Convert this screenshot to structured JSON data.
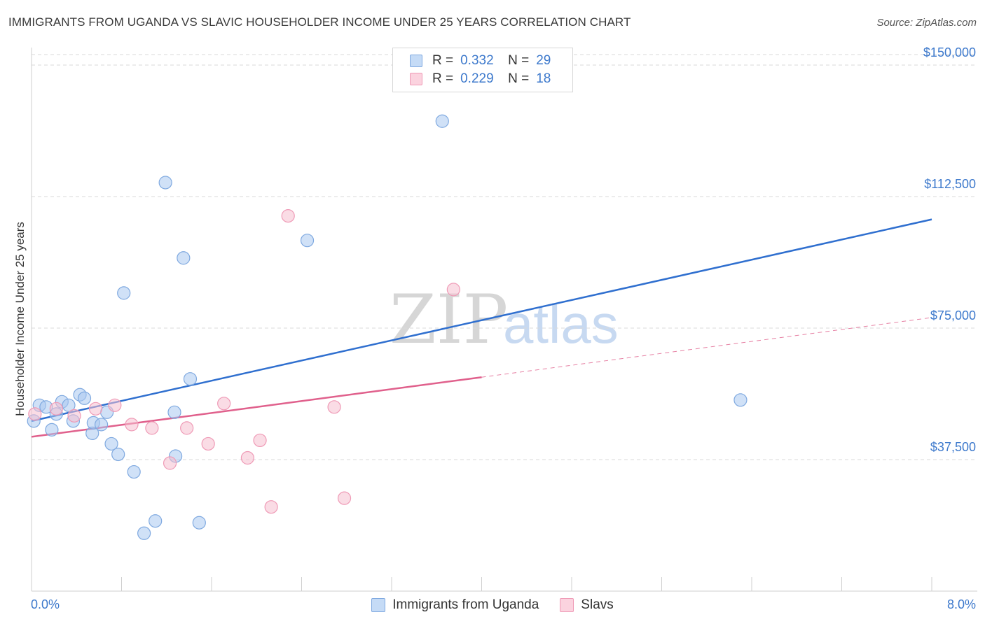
{
  "header": {
    "title": "IMMIGRANTS FROM UGANDA VS SLAVIC HOUSEHOLDER INCOME UNDER 25 YEARS CORRELATION CHART",
    "source": "Source: ZipAtlas.com"
  },
  "watermark": {
    "zip": "ZIP",
    "atlas": "atlas"
  },
  "legend": {
    "rows": [
      {
        "r_label": "R =",
        "r_value": "0.332",
        "n_label": "N =",
        "n_value": "29",
        "color": "#a9c8f0"
      },
      {
        "r_label": "R =",
        "r_value": "0.229",
        "n_label": "N =",
        "n_value": "18",
        "color": "#f6bfd0"
      }
    ]
  },
  "bottom_legend": {
    "items": [
      {
        "label": "Immigrants from Uganda",
        "color": "#a9c8f0"
      },
      {
        "label": "Slavs",
        "color": "#f6bfd0"
      }
    ]
  },
  "colors": {
    "blue_fill": "#a9c8f0",
    "blue_line": "#2f6fcf",
    "pink_fill": "#f6bfd0",
    "pink_line": "#e0608c",
    "tick_text": "#3d79cc",
    "grid": "#d9d9d9"
  },
  "chart_data": {
    "type": "scatter",
    "title": "IMMIGRANTS FROM UGANDA VS SLAVIC HOUSEHOLDER INCOME UNDER 25 YEARS CORRELATION CHART",
    "xlabel": "",
    "ylabel": "Householder Income Under 25 years",
    "xlim": [
      0,
      8.0
    ],
    "ylim": [
      0,
      153000
    ],
    "x_tick_labels": [
      "0.0%",
      "8.0%"
    ],
    "y_ticks": [
      37500,
      75000,
      112500,
      150000
    ],
    "y_tick_labels": [
      "$37,500",
      "$75,000",
      "$112,500",
      "$150,000"
    ],
    "grid": "horizontal dashed",
    "legend_position": "top-center",
    "series": [
      {
        "name": "Immigrants from Uganda",
        "r": 0.332,
        "n": 29,
        "points": [
          [
            0.02,
            48500
          ],
          [
            0.07,
            53000
          ],
          [
            0.13,
            52500
          ],
          [
            0.18,
            46000
          ],
          [
            0.22,
            50500
          ],
          [
            0.27,
            54000
          ],
          [
            0.33,
            53000
          ],
          [
            0.37,
            48500
          ],
          [
            0.43,
            56000
          ],
          [
            0.47,
            55000
          ],
          [
            0.54,
            45000
          ],
          [
            0.55,
            48000
          ],
          [
            0.62,
            47500
          ],
          [
            0.67,
            51000
          ],
          [
            0.71,
            42000
          ],
          [
            0.77,
            39000
          ],
          [
            0.82,
            85000
          ],
          [
            0.91,
            34000
          ],
          [
            1.0,
            16500
          ],
          [
            1.1,
            20000
          ],
          [
            1.19,
            116500
          ],
          [
            1.27,
            51000
          ],
          [
            1.28,
            38500
          ],
          [
            1.35,
            95000
          ],
          [
            1.41,
            60500
          ],
          [
            1.49,
            19500
          ],
          [
            2.45,
            100000
          ],
          [
            3.65,
            134000
          ],
          [
            6.3,
            54500
          ]
        ],
        "trend": {
          "x": [
            0.0,
            8.0
          ],
          "y": [
            48500,
            106000
          ]
        }
      },
      {
        "name": "Slavs",
        "r": 0.229,
        "n": 18,
        "points": [
          [
            0.03,
            50500
          ],
          [
            0.22,
            52000
          ],
          [
            0.38,
            50000
          ],
          [
            0.57,
            52000
          ],
          [
            0.74,
            53000
          ],
          [
            0.89,
            47500
          ],
          [
            1.07,
            46500
          ],
          [
            1.23,
            36500
          ],
          [
            1.38,
            46500
          ],
          [
            1.57,
            42000
          ],
          [
            1.71,
            53500
          ],
          [
            1.92,
            38000
          ],
          [
            2.03,
            43000
          ],
          [
            2.13,
            24000
          ],
          [
            2.28,
            107000
          ],
          [
            2.69,
            52500
          ],
          [
            2.78,
            26500
          ],
          [
            3.75,
            86000
          ]
        ],
        "trend": {
          "x": [
            0.0,
            4.0
          ],
          "y": [
            44000,
            61000
          ],
          "dashed_to": [
            8.0,
            78000
          ]
        }
      }
    ]
  }
}
